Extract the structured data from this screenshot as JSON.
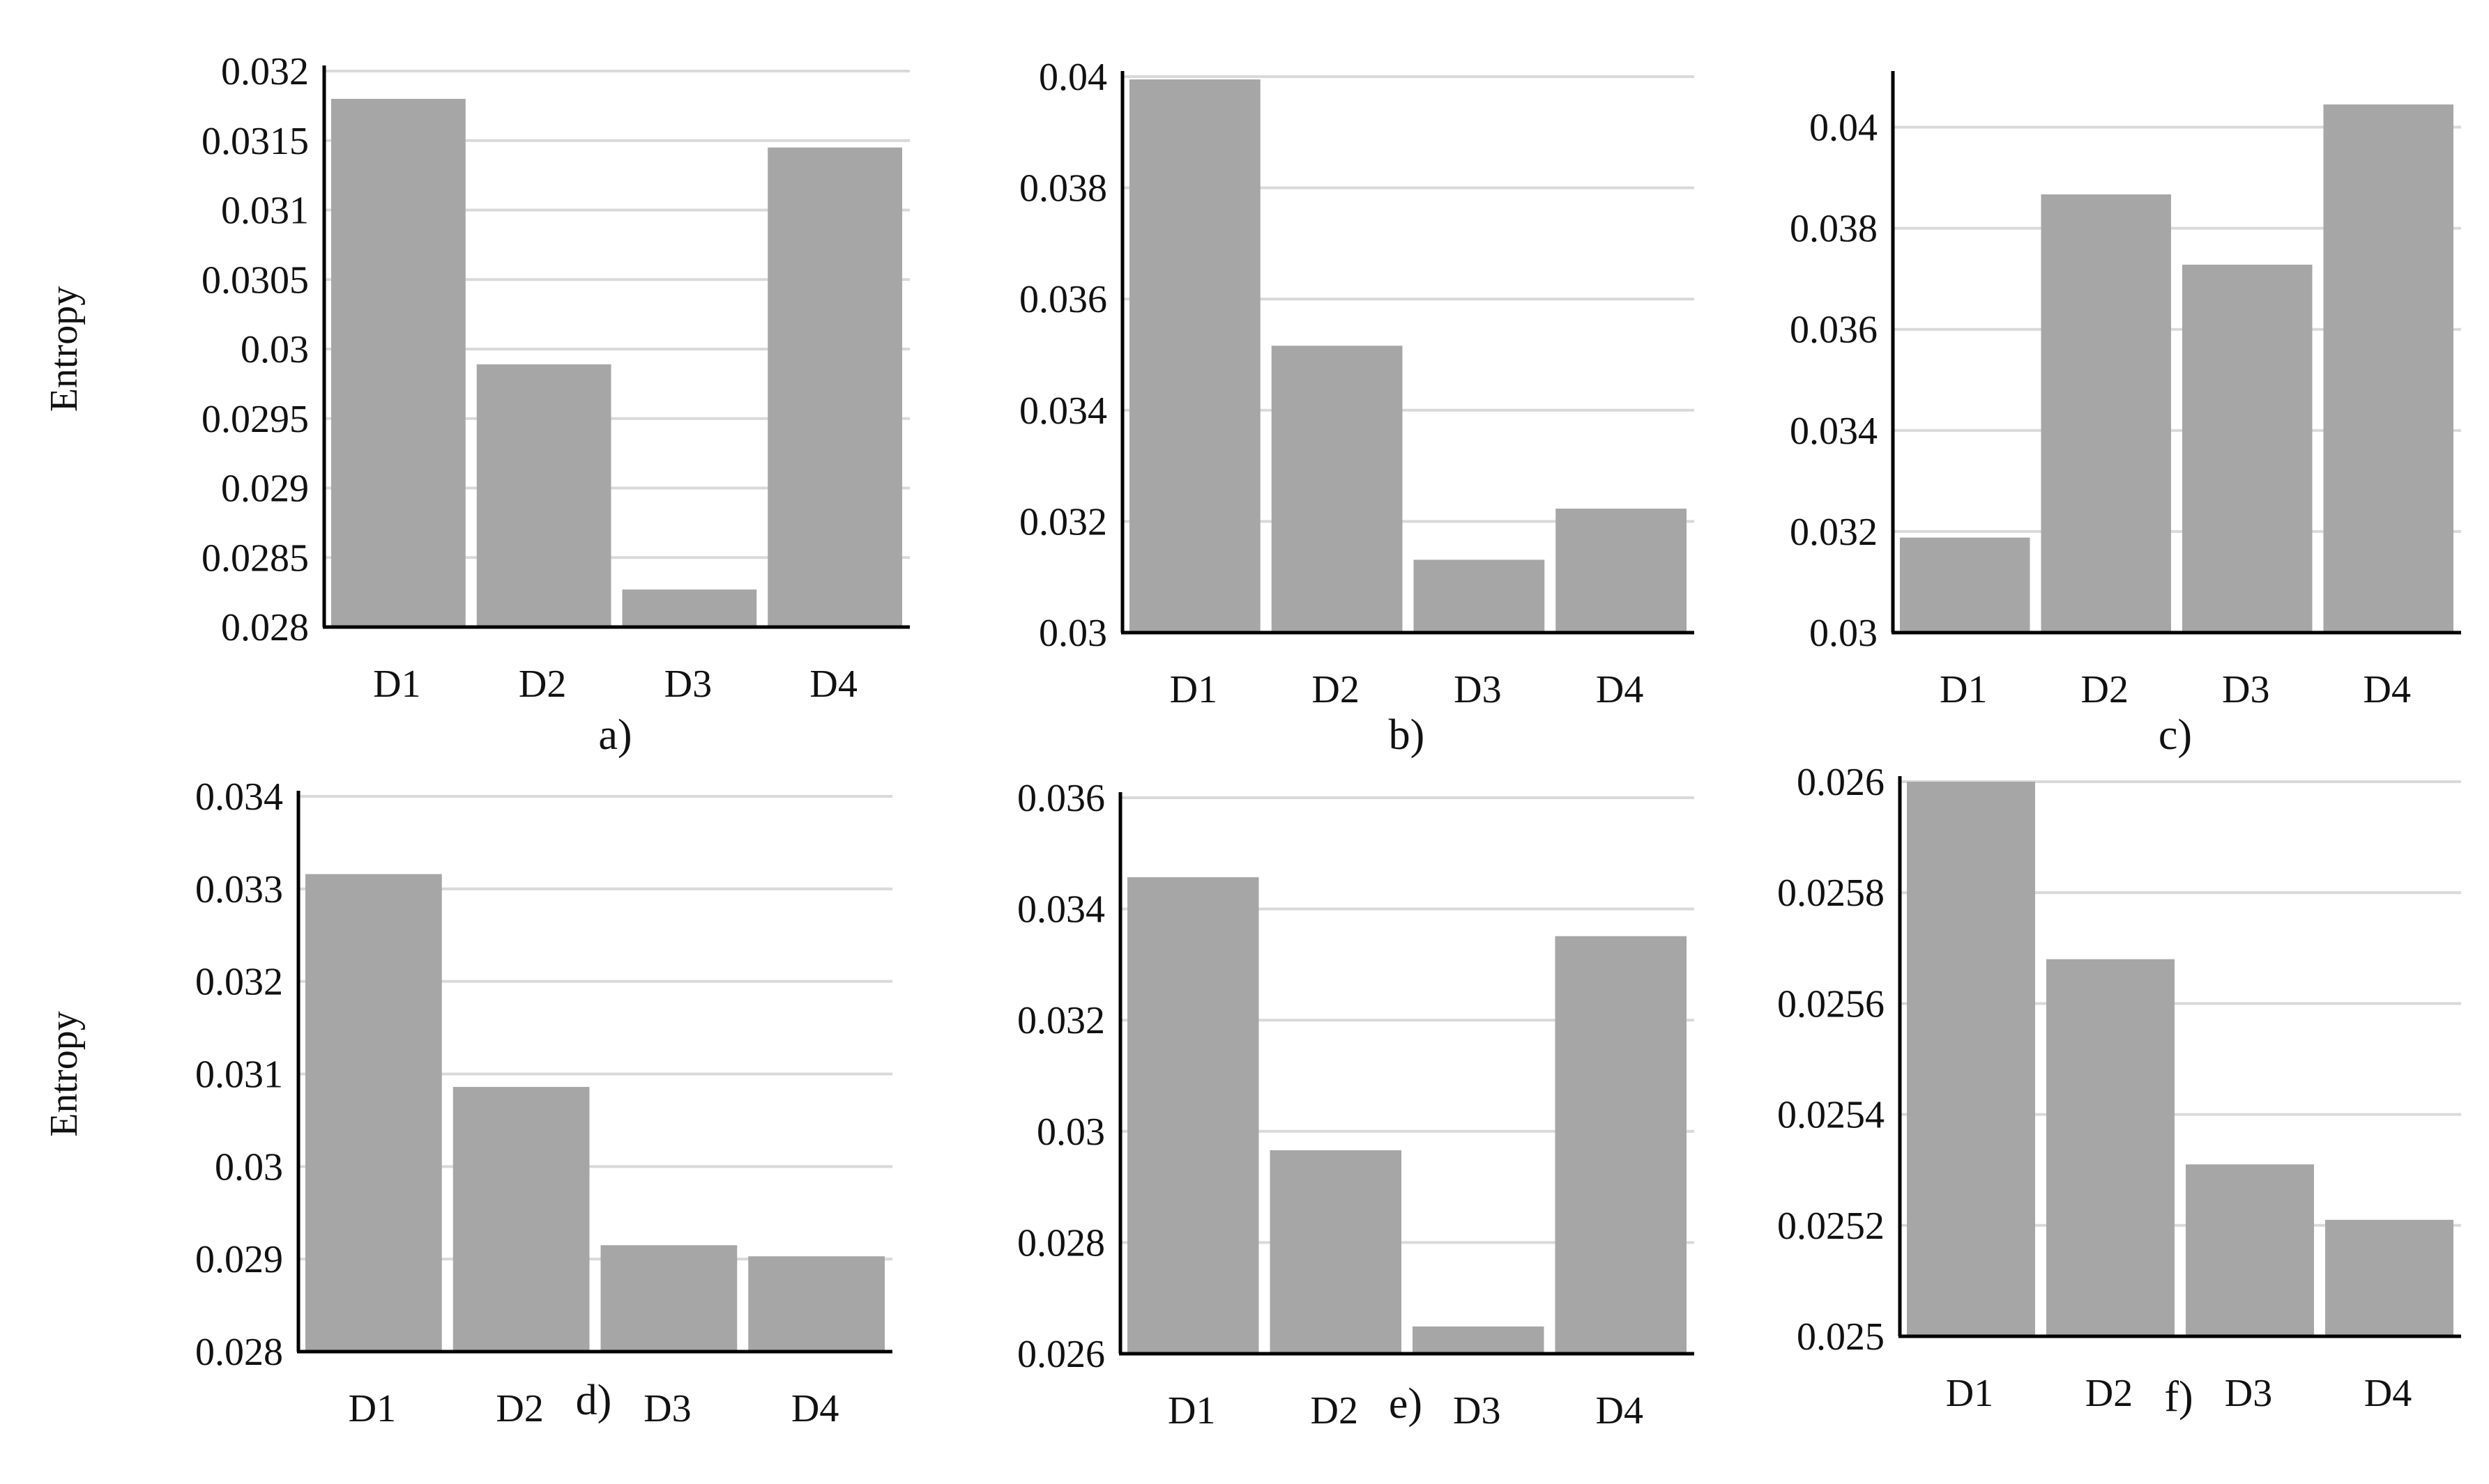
{
  "colors": {
    "bar": "#a6a6a6",
    "grid": "#d9d9d9",
    "axis": "#000000"
  },
  "chart_data": [
    {
      "type": "bar",
      "panel_label": "a)",
      "ylabel": "Entropy",
      "categories": [
        "D1",
        "D2",
        "D3",
        "D4"
      ],
      "values": [
        0.0318,
        0.02989,
        0.02827,
        0.03145
      ],
      "ylim": [
        0.028,
        0.032
      ],
      "yticks": [
        "0.028",
        "0.0285",
        "0.029",
        "0.0295",
        "0.03",
        "0.0305",
        "0.031",
        "0.0315",
        "0.032"
      ],
      "grid": true
    },
    {
      "type": "bar",
      "panel_label": "b)",
      "ylabel": "",
      "categories": [
        "D1",
        "D2",
        "D3",
        "D4"
      ],
      "values": [
        0.03995,
        0.03516,
        0.03131,
        0.03223
      ],
      "ylim": [
        0.03,
        0.04
      ],
      "yticks": [
        "0.03",
        "0.032",
        "0.034",
        "0.036",
        "0.038",
        "0.04"
      ],
      "grid": true
    },
    {
      "type": "bar",
      "panel_label": "c)",
      "ylabel": "",
      "categories": [
        "D1",
        "D2",
        "D3",
        "D4"
      ],
      "values": [
        0.03188,
        0.03867,
        0.03728,
        0.04045
      ],
      "ylim": [
        0.03,
        0.041
      ],
      "yticks": [
        "0.03",
        "0.032",
        "0.034",
        "0.036",
        "0.038",
        "0.04"
      ],
      "grid": true
    },
    {
      "type": "bar",
      "panel_label": "d)",
      "ylabel": "Entropy",
      "categories": [
        "D1",
        "D2",
        "D3",
        "D4"
      ],
      "values": [
        0.03316,
        0.03086,
        0.02915,
        0.02903
      ],
      "ylim": [
        0.028,
        0.034
      ],
      "yticks": [
        "0.028",
        "0.029",
        "0.03",
        "0.031",
        "0.032",
        "0.033",
        "0.034"
      ],
      "grid": true
    },
    {
      "type": "bar",
      "panel_label": "e)",
      "ylabel": "",
      "categories": [
        "D1",
        "D2",
        "D3",
        "D4"
      ],
      "values": [
        0.03457,
        0.02966,
        0.02649,
        0.03351
      ],
      "ylim": [
        0.026,
        0.036
      ],
      "yticks": [
        "0.026",
        "0.028",
        "0.03",
        "0.032",
        "0.034",
        "0.036"
      ],
      "grid": true
    },
    {
      "type": "bar",
      "panel_label": "f)",
      "ylabel": "",
      "categories": [
        "D1",
        "D2",
        "D3",
        "D4"
      ],
      "values": [
        0.026,
        0.02568,
        0.02531,
        0.02521
      ],
      "ylim": [
        0.025,
        0.026
      ],
      "yticks": [
        "0.025",
        "0.0252",
        "0.0254",
        "0.0256",
        "0.0258",
        "0.026"
      ],
      "grid": true
    }
  ]
}
